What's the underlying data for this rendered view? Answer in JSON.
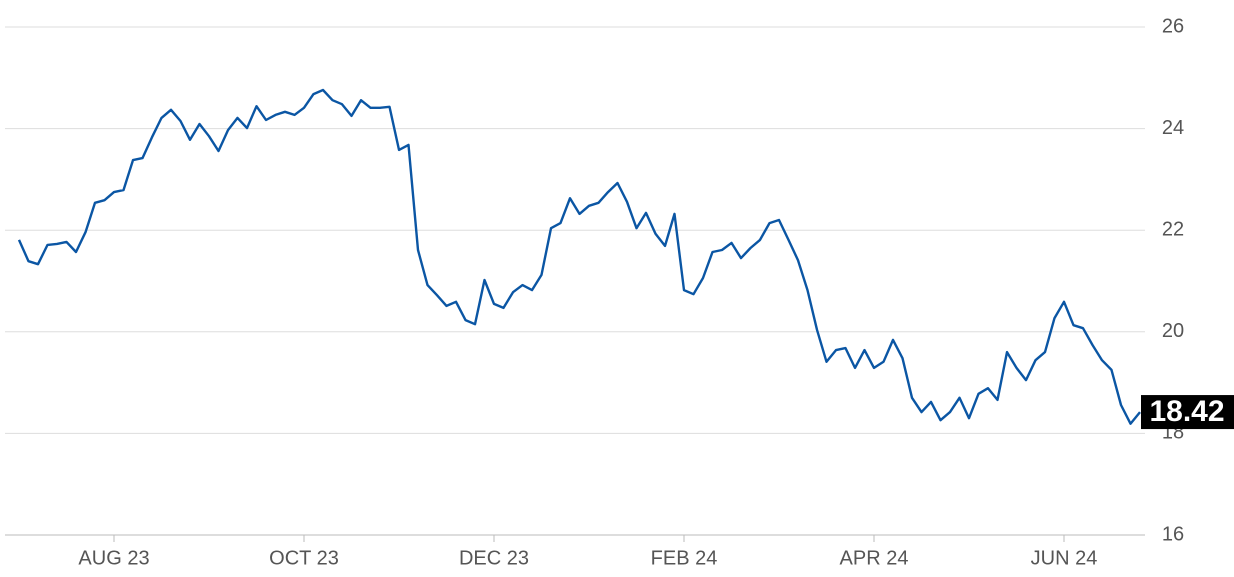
{
  "chart_data": {
    "type": "line",
    "categories": [
      null,
      null,
      null,
      null,
      null,
      null,
      null,
      null,
      null,
      null,
      "AUG 23",
      null,
      null,
      null,
      null,
      null,
      null,
      null,
      null,
      null,
      null,
      null,
      null,
      null,
      null,
      null,
      null,
      null,
      null,
      null,
      "OCT 23",
      null,
      null,
      null,
      null,
      null,
      null,
      null,
      null,
      null,
      null,
      null,
      null,
      null,
      null,
      null,
      null,
      null,
      null,
      null,
      "DEC 23",
      null,
      null,
      null,
      null,
      null,
      null,
      null,
      null,
      null,
      null,
      null,
      null,
      null,
      null,
      null,
      null,
      null,
      null,
      null,
      "FEB 24",
      null,
      null,
      null,
      null,
      null,
      null,
      null,
      null,
      null,
      null,
      null,
      null,
      null,
      null,
      null,
      null,
      null,
      null,
      null,
      "APR 24",
      null,
      null,
      null,
      null,
      null,
      null,
      null,
      null,
      null,
      null,
      null,
      null,
      null,
      null,
      null,
      null,
      null,
      null,
      null,
      "JUN 24",
      null,
      null,
      null,
      null,
      null,
      null,
      null,
      null
    ],
    "values": [
      21.81,
      21.39,
      21.33,
      21.71,
      21.73,
      21.77,
      21.57,
      21.96,
      22.54,
      22.59,
      22.75,
      22.79,
      23.38,
      23.42,
      23.83,
      24.21,
      24.37,
      24.15,
      23.78,
      24.09,
      23.85,
      23.56,
      23.97,
      24.21,
      24.01,
      24.44,
      24.17,
      24.27,
      24.33,
      24.27,
      24.41,
      24.68,
      24.76,
      24.56,
      24.48,
      24.25,
      24.56,
      24.41,
      24.41,
      24.43,
      23.58,
      23.68,
      21.61,
      20.92,
      20.72,
      20.51,
      20.59,
      20.23,
      20.15,
      21.02,
      20.55,
      20.47,
      20.78,
      20.92,
      20.82,
      21.12,
      22.04,
      22.14,
      22.63,
      22.32,
      22.48,
      22.54,
      22.75,
      22.93,
      22.56,
      22.04,
      22.34,
      21.93,
      21.69,
      22.32,
      20.82,
      20.74,
      21.06,
      21.57,
      21.61,
      21.75,
      21.45,
      21.65,
      21.81,
      22.14,
      22.2,
      21.81,
      21.41,
      20.82,
      20.04,
      19.41,
      19.64,
      19.68,
      19.29,
      19.64,
      19.29,
      19.41,
      19.84,
      19.48,
      18.7,
      18.42,
      18.62,
      18.26,
      18.42,
      18.7,
      18.3,
      18.78,
      18.89,
      18.66,
      19.6,
      19.29,
      19.05,
      19.44,
      19.6,
      20.27,
      20.59,
      20.13,
      20.07,
      19.74,
      19.44,
      19.25,
      18.56,
      18.19,
      18.42
    ],
    "color": "#0b56a4",
    "ylim": [
      16,
      26.5
    ],
    "yticks": [
      16,
      18,
      20,
      22,
      24,
      26
    ],
    "grid": true
  }
}
